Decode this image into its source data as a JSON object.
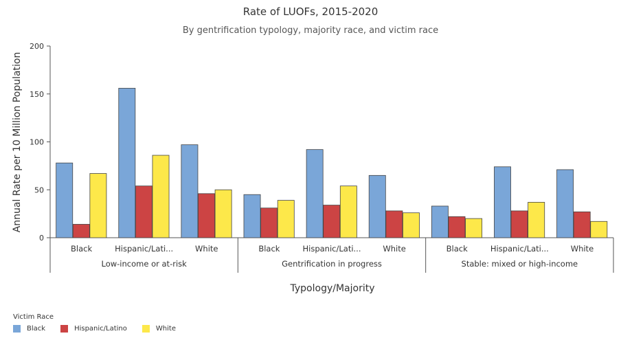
{
  "chart_data": {
    "type": "bar",
    "title": "Rate of LUOFs, 2015-2020",
    "subtitle": "By gentrification typology, majority race, and victim race",
    "xlabel": "Typology/Majority",
    "ylabel": "Annual Rate per 10 Million Population",
    "ylim": [
      0,
      200
    ],
    "yticks": [
      0,
      50,
      100,
      150,
      200
    ],
    "grid": false,
    "groups": [
      {
        "label": "Low-income or at-risk",
        "categories": [
          "Black",
          "Hispanic/Lati...",
          "White"
        ]
      },
      {
        "label": "Gentrification in progress",
        "categories": [
          "Black",
          "Hispanic/Lati...",
          "White"
        ]
      },
      {
        "label": "Stable: mixed or high-income",
        "categories": [
          "Black",
          "Hispanic/Lati...",
          "White"
        ]
      }
    ],
    "categories": [
      "Black",
      "Hispanic/Lati...",
      "White",
      "Black",
      "Hispanic/Lati...",
      "White",
      "Black",
      "Hispanic/Lati...",
      "White"
    ],
    "series": [
      {
        "name": "Black",
        "color": "#7aa6d8",
        "values": [
          78,
          156,
          97,
          45,
          92,
          65,
          33,
          74,
          71
        ]
      },
      {
        "name": "Hispanic/Latino",
        "color": "#cc4444",
        "values": [
          14,
          54,
          46,
          31,
          34,
          28,
          22,
          28,
          27
        ]
      },
      {
        "name": "White",
        "color": "#fde84a",
        "values": [
          67,
          86,
          50,
          39,
          54,
          26,
          20,
          37,
          17
        ]
      }
    ],
    "legend": {
      "title": "Victim Race",
      "placement": "bottom-left"
    }
  }
}
